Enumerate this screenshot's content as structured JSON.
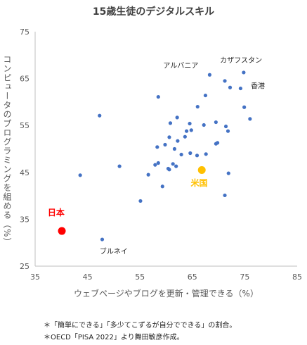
{
  "chart_data": {
    "type": "scatter",
    "title": "15歳生徒のデジタルスキル",
    "xlabel": "ウェブページやブログを更新・管理できる（%）",
    "ylabel": "コンピュータのプログラミングを組める（%）",
    "xlim": [
      35,
      85
    ],
    "ylim": [
      25,
      75
    ],
    "xticks": [
      "35",
      "45",
      "55",
      "65",
      "75",
      "85"
    ],
    "yticks": [
      "25",
      "35",
      "45",
      "55",
      "65",
      "75"
    ],
    "grid": false,
    "colors": {
      "others": "#4472C4",
      "japan": "#FF0000",
      "usa": "#FFC000",
      "axis": "#BFBFBF",
      "tick_text": "#595959"
    },
    "series": [
      {
        "role": "others",
        "points": [
          [
            74.8,
            66.3
          ],
          [
            71.2,
            64.5
          ],
          [
            68.3,
            65.8
          ],
          [
            72.2,
            63.1
          ],
          [
            74.2,
            62.9
          ],
          [
            67.5,
            61.4
          ],
          [
            58.5,
            61.1
          ],
          [
            66.0,
            59.0
          ],
          [
            74.9,
            58.9
          ],
          [
            47.3,
            57.1
          ],
          [
            76.0,
            56.4
          ],
          [
            62.1,
            56.7
          ],
          [
            69.5,
            55.7
          ],
          [
            60.8,
            55.5
          ],
          [
            64.5,
            55.4
          ],
          [
            67.2,
            55.1
          ],
          [
            71.4,
            54.8
          ],
          [
            63.9,
            53.8
          ],
          [
            64.8,
            54.0
          ],
          [
            71.8,
            53.8
          ],
          [
            63.6,
            52.6
          ],
          [
            60.6,
            52.5
          ],
          [
            62.2,
            51.7
          ],
          [
            69.5,
            51.1
          ],
          [
            69.8,
            51.3
          ],
          [
            58.3,
            50.4
          ],
          [
            59.8,
            50.9
          ],
          [
            61.6,
            50.0
          ],
          [
            67.6,
            48.9
          ],
          [
            65.9,
            48.6
          ],
          [
            64.6,
            49.1
          ],
          [
            62.9,
            48.8
          ],
          [
            57.9,
            46.6
          ],
          [
            58.5,
            47.0
          ],
          [
            61.3,
            46.8
          ],
          [
            61.9,
            46.3
          ],
          [
            60.4,
            45.8
          ],
          [
            60.6,
            45.6
          ],
          [
            51.1,
            46.3
          ],
          [
            43.6,
            44.4
          ],
          [
            56.6,
            44.5
          ],
          [
            71.9,
            44.8
          ],
          [
            59.3,
            42.0
          ],
          [
            71.2,
            40.1
          ],
          [
            55.1,
            38.9
          ],
          [
            47.8,
            30.7
          ]
        ]
      },
      {
        "role": "japan",
        "points": [
          [
            40.1,
            32.5
          ]
        ]
      },
      {
        "role": "usa",
        "points": [
          [
            66.8,
            45.5
          ]
        ]
      }
    ],
    "annotations": [
      {
        "text": "アルバニア",
        "x": 62.8,
        "y": 67.3,
        "color": "#222222"
      },
      {
        "text": "カザフスタン",
        "x": 74.3,
        "y": 68.4,
        "color": "#222222"
      },
      {
        "text": "香港",
        "x": 77.5,
        "y": 62.9,
        "color": "#222222"
      },
      {
        "text": "米国",
        "x": 66.3,
        "y": 42.1,
        "color": "#FFC000"
      },
      {
        "text": "日本",
        "x": 39.0,
        "y": 35.8,
        "color": "#FF0000"
      },
      {
        "text": "ブルネイ",
        "x": 50.0,
        "y": 27.6,
        "color": "#222222"
      }
    ]
  },
  "notes": {
    "line1": "＊「簡単にできる」「多少てこずるが自分でできる」の割合。",
    "line2": "＊OECD「PISA 2022」より舞田敏彦作成。"
  }
}
